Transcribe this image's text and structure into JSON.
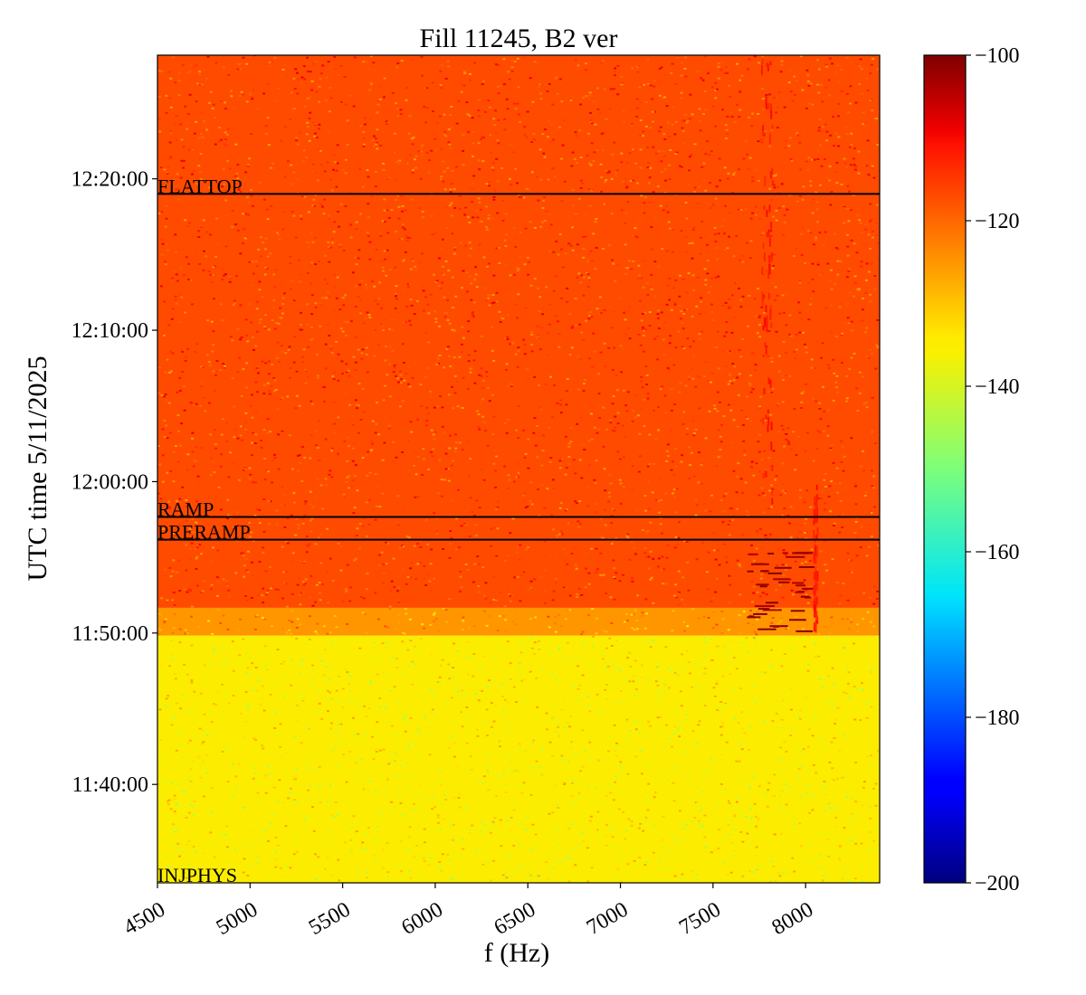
{
  "chart_data": {
    "type": "heatmap",
    "title": "Fill 11245, B2 ver",
    "xlabel": "f (Hz)",
    "ylabel": "UTC time 5/11/2025",
    "xlim": [
      4500,
      8400
    ],
    "ylim": [
      "11:33:30",
      "12:28:10"
    ],
    "x_ticks": [
      4500,
      5000,
      5500,
      6000,
      6500,
      7000,
      7500,
      8000
    ],
    "x_tick_labels": [
      "4500",
      "5000",
      "5500",
      "6000",
      "6500",
      "7000",
      "7500",
      "8000"
    ],
    "y_ticks": [
      "11:40:00",
      "11:50:00",
      "12:00:00",
      "12:10:00",
      "12:20:00"
    ],
    "colorbar": {
      "colormap": "jet",
      "range": [
        -200,
        -100
      ],
      "ticks": [
        -100,
        -120,
        -140,
        -160,
        -180,
        -200
      ],
      "tick_labels": [
        "−100",
        "−120",
        "−140",
        "−160",
        "−180",
        "−200"
      ]
    },
    "regions": [
      {
        "from": "11:33:30",
        "to": "11:49:50",
        "level_dB": -135
      },
      {
        "from": "11:49:50",
        "to": "11:51:40",
        "level_dB": -125
      },
      {
        "from": "11:51:40",
        "to": "12:28:10",
        "level_dB": -117
      }
    ],
    "events": [
      {
        "label": "INJPHYS",
        "time": "11:33:30",
        "line": false
      },
      {
        "label": "PRERAMP",
        "time": "11:56:10",
        "line": true
      },
      {
        "label": "RAMP",
        "time": "11:57:40",
        "line": true
      },
      {
        "label": "FLATTOP",
        "time": "12:19:00",
        "line": true
      }
    ],
    "features": [
      {
        "description": "strong narrow-band burst",
        "f_range_Hz": [
          7680,
          8050
        ],
        "time_range": [
          "11:50:00",
          "11:55:30"
        ],
        "level_dB": -102
      },
      {
        "description": "weak vertical line",
        "f_range_Hz": [
          7760,
          7830
        ],
        "time_range": [
          "11:58:00",
          "12:28:10"
        ],
        "level_dB": -112
      },
      {
        "description": "weak vertical line",
        "f_range_Hz": [
          8040,
          8070
        ],
        "time_range": [
          "11:50:00",
          "12:00:00"
        ],
        "level_dB": -112
      }
    ]
  }
}
